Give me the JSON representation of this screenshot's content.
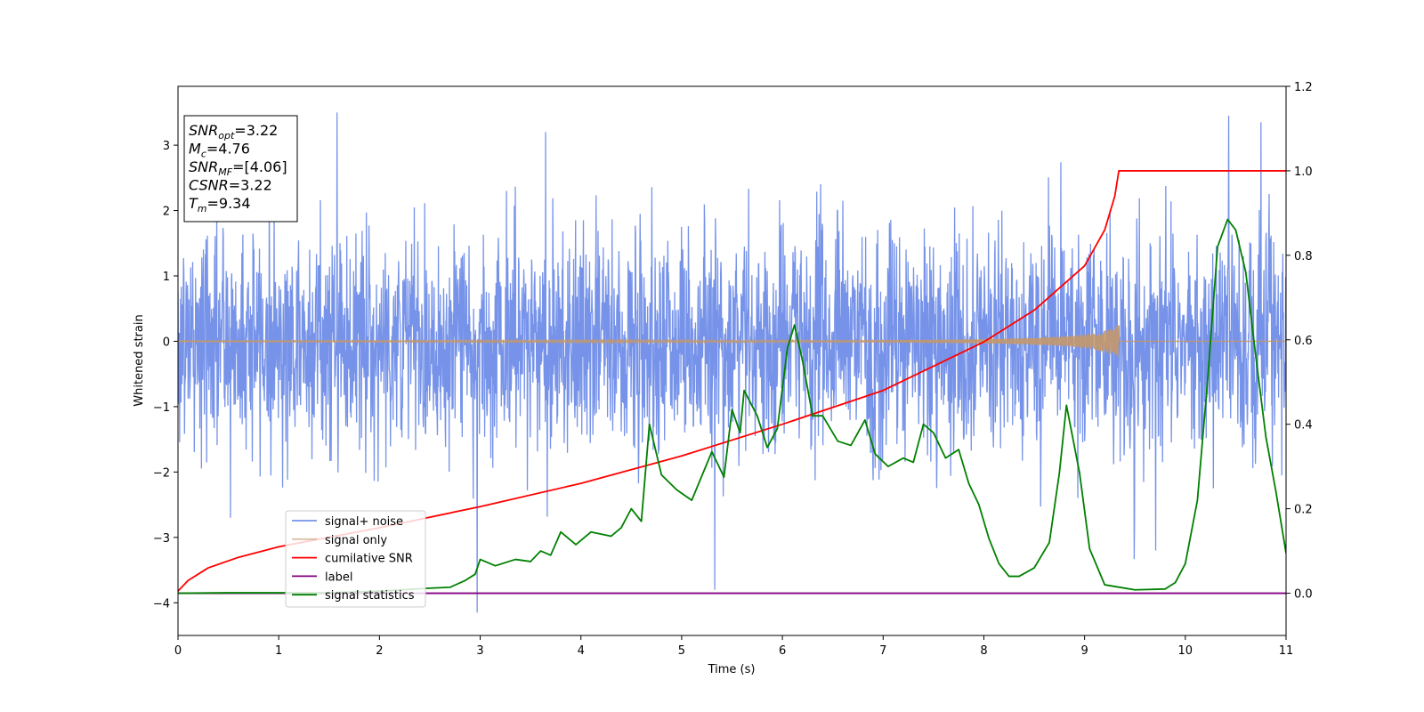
{
  "chart_data": {
    "type": "line",
    "xlabel": "Time (s)",
    "ylabel": "Whitened strain",
    "xlim": [
      0,
      11
    ],
    "ylim_left": [
      -4.5,
      3.9
    ],
    "ylim_right": [
      -0.1,
      1.2
    ],
    "x_ticks": [
      0,
      1,
      2,
      3,
      4,
      5,
      6,
      7,
      8,
      9,
      10,
      11
    ],
    "x_tick_labels": [
      "0",
      "1",
      "2",
      "3",
      "4",
      "5",
      "6",
      "7",
      "8",
      "9",
      "10",
      "11"
    ],
    "y_left_ticks": [
      -4,
      -3,
      -2,
      -1,
      0,
      1,
      2,
      3
    ],
    "y_left_tick_labels": [
      "−4",
      "−3",
      "−2",
      "−1",
      "0",
      "1",
      "2",
      "3"
    ],
    "y_right_ticks": [
      0.0,
      0.2,
      0.4,
      0.6,
      0.8,
      1.0,
      1.2
    ],
    "y_right_tick_labels": [
      "0.0",
      "0.2",
      "0.4",
      "0.6",
      "0.8",
      "1.0",
      "1.2"
    ],
    "grid": false,
    "legend_position": "lower-left",
    "annotation": {
      "lines": [
        {
          "base": "SNR",
          "sub": "opt",
          "value": "=3.22"
        },
        {
          "base": "M",
          "sub": "c",
          "value": "=4.76"
        },
        {
          "base": "SNR",
          "sub": "MF",
          "value": "=[4.06]"
        },
        {
          "base": "CSNR",
          "sub": "",
          "value": "=3.22"
        },
        {
          "base": "T",
          "sub": "m",
          "value": "=9.34"
        }
      ]
    },
    "series": [
      {
        "name": "signal+ noise",
        "axis": "left",
        "color": "#4169e1",
        "noise_sigma": 0.95,
        "peaks": [
          {
            "x": 1.58,
            "y": 3.5
          },
          {
            "x": 2.97,
            "y": -4.15
          },
          {
            "x": 5.33,
            "y": -3.8
          },
          {
            "x": 10.43,
            "y": 3.45
          },
          {
            "x": 10.75,
            "y": 3.35
          },
          {
            "x": 3.65,
            "y": 3.2
          },
          {
            "x": 0.52,
            "y": -2.7
          }
        ]
      },
      {
        "name": "signal only",
        "axis": "left",
        "color": "#c4986b",
        "merger_time": 9.34,
        "amplitude_at_merger": 0.27
      },
      {
        "name": "cumilative SNR",
        "axis": "right",
        "color": "#ff0000",
        "points": [
          [
            0,
            0.005
          ],
          [
            0.1,
            0.03
          ],
          [
            0.3,
            0.06
          ],
          [
            0.6,
            0.085
          ],
          [
            1,
            0.11
          ],
          [
            2,
            0.155
          ],
          [
            3,
            0.205
          ],
          [
            4,
            0.26
          ],
          [
            5,
            0.325
          ],
          [
            6,
            0.4
          ],
          [
            7,
            0.48
          ],
          [
            8,
            0.595
          ],
          [
            8.5,
            0.67
          ],
          [
            9,
            0.775
          ],
          [
            9.2,
            0.86
          ],
          [
            9.3,
            0.94
          ],
          [
            9.34,
            1.0
          ],
          [
            11,
            1.0
          ]
        ]
      },
      {
        "name": "label",
        "axis": "right",
        "color": "#800080",
        "points": [
          [
            0,
            0.0
          ],
          [
            11,
            0.0
          ]
        ]
      },
      {
        "name": "signal statistics",
        "axis": "right",
        "color": "#008000",
        "points": [
          [
            0,
            0.0
          ],
          [
            0.5,
            0.001
          ],
          [
            1,
            0.001
          ],
          [
            1.5,
            0.001
          ],
          [
            2,
            0.005
          ],
          [
            2.5,
            0.012
          ],
          [
            2.7,
            0.014
          ],
          [
            2.85,
            0.03
          ],
          [
            2.95,
            0.045
          ],
          [
            3,
            0.08
          ],
          [
            3.15,
            0.065
          ],
          [
            3.35,
            0.08
          ],
          [
            3.5,
            0.075
          ],
          [
            3.6,
            0.1
          ],
          [
            3.7,
            0.09
          ],
          [
            3.8,
            0.145
          ],
          [
            3.95,
            0.115
          ],
          [
            4.1,
            0.145
          ],
          [
            4.3,
            0.135
          ],
          [
            4.4,
            0.155
          ],
          [
            4.5,
            0.2
          ],
          [
            4.6,
            0.17
          ],
          [
            4.68,
            0.4
          ],
          [
            4.8,
            0.28
          ],
          [
            4.95,
            0.245
          ],
          [
            5.1,
            0.22
          ],
          [
            5.3,
            0.335
          ],
          [
            5.42,
            0.275
          ],
          [
            5.5,
            0.435
          ],
          [
            5.58,
            0.38
          ],
          [
            5.62,
            0.48
          ],
          [
            5.75,
            0.42
          ],
          [
            5.85,
            0.345
          ],
          [
            5.95,
            0.39
          ],
          [
            6.05,
            0.58
          ],
          [
            6.12,
            0.635
          ],
          [
            6.2,
            0.55
          ],
          [
            6.3,
            0.42
          ],
          [
            6.4,
            0.42
          ],
          [
            6.55,
            0.36
          ],
          [
            6.68,
            0.35
          ],
          [
            6.82,
            0.41
          ],
          [
            6.92,
            0.33
          ],
          [
            7.05,
            0.3
          ],
          [
            7.2,
            0.32
          ],
          [
            7.3,
            0.31
          ],
          [
            7.4,
            0.4
          ],
          [
            7.5,
            0.38
          ],
          [
            7.62,
            0.32
          ],
          [
            7.75,
            0.34
          ],
          [
            7.85,
            0.26
          ],
          [
            7.95,
            0.21
          ],
          [
            8.05,
            0.13
          ],
          [
            8.15,
            0.07
          ],
          [
            8.25,
            0.04
          ],
          [
            8.35,
            0.04
          ],
          [
            8.5,
            0.06
          ],
          [
            8.65,
            0.12
          ],
          [
            8.75,
            0.285
          ],
          [
            8.82,
            0.445
          ],
          [
            8.95,
            0.285
          ],
          [
            9.05,
            0.105
          ],
          [
            9.2,
            0.02
          ],
          [
            9.5,
            0.008
          ],
          [
            9.8,
            0.01
          ],
          [
            9.9,
            0.025
          ],
          [
            10.0,
            0.07
          ],
          [
            10.12,
            0.22
          ],
          [
            10.22,
            0.5
          ],
          [
            10.32,
            0.82
          ],
          [
            10.42,
            0.885
          ],
          [
            10.5,
            0.86
          ],
          [
            10.6,
            0.76
          ],
          [
            10.7,
            0.56
          ],
          [
            10.8,
            0.37
          ],
          [
            10.9,
            0.24
          ],
          [
            11,
            0.095
          ]
        ]
      }
    ]
  }
}
